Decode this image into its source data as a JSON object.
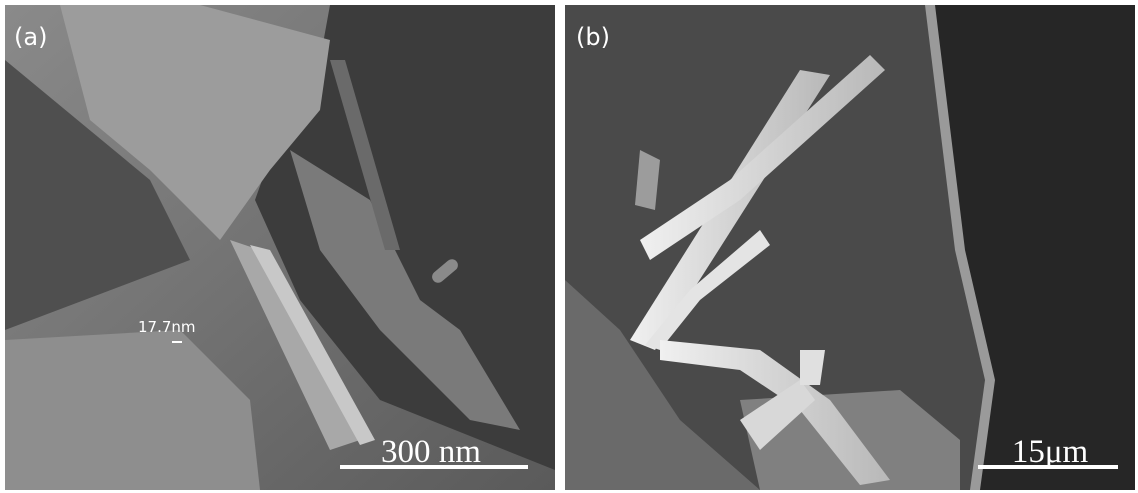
{
  "panels": [
    {
      "label": "(a)",
      "measurement": "17.7nm",
      "scale_bar": "300 nm"
    },
    {
      "label": "(b)",
      "scale_bar": "15μm"
    }
  ]
}
